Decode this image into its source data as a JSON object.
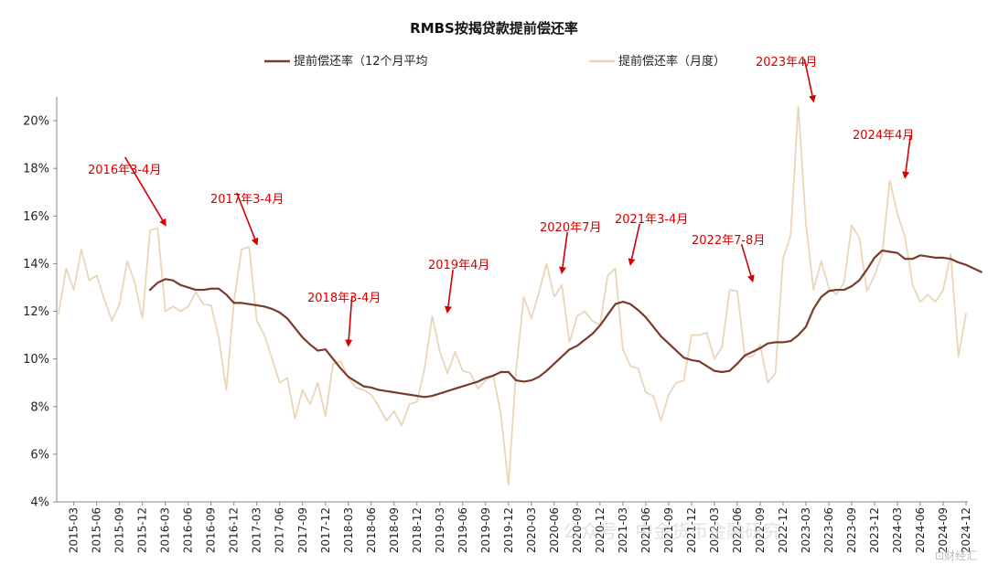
{
  "chart_data": {
    "type": "line",
    "title": "RMBS按揭贷款提前偿还率",
    "xlabel": "",
    "ylabel": "",
    "ylim": [
      4,
      21
    ],
    "y_ticks": [
      "4%",
      "6%",
      "8%",
      "10%",
      "12%",
      "14%",
      "16%",
      "18%",
      "20%"
    ],
    "y_tick_values": [
      4,
      6,
      8,
      10,
      12,
      14,
      16,
      18,
      20
    ],
    "x_tick_labels": [
      "2015-03",
      "2015-06",
      "2015-09",
      "2015-12",
      "2016-03",
      "2016-06",
      "2016-09",
      "2016-12",
      "2017-03",
      "2017-06",
      "2017-09",
      "2017-12",
      "2018-03",
      "2018-06",
      "2018-09",
      "2018-12",
      "2019-03",
      "2019-06",
      "2019-09",
      "2019-12",
      "2020-03",
      "2020-06",
      "2020-09",
      "2020-12",
      "2021-03",
      "2021-06",
      "2021-09",
      "2021-12",
      "2022-03",
      "2022-06",
      "2022-09",
      "2022-12",
      "2023-03",
      "2023-06",
      "2023-09",
      "2023-12",
      "2024-03",
      "2024-06",
      "2024-09",
      "2024-12"
    ],
    "grid": false,
    "legend_position": "top-center",
    "series": [
      {
        "name": "提前偿还率（12个月平均",
        "color": "#7b3b2b",
        "start": "2016-01",
        "values": [
          12.9,
          13.2,
          13.35,
          13.3,
          13.1,
          13.0,
          12.9,
          12.9,
          12.95,
          12.95,
          12.7,
          12.35,
          12.35,
          12.3,
          12.25,
          12.2,
          12.1,
          11.95,
          11.7,
          11.3,
          10.9,
          10.6,
          10.35,
          10.4,
          10.0,
          9.6,
          9.25,
          9.05,
          8.85,
          8.8,
          8.7,
          8.65,
          8.6,
          8.55,
          8.5,
          8.45,
          8.4,
          8.45,
          8.55,
          8.65,
          8.75,
          8.85,
          8.95,
          9.05,
          9.2,
          9.3,
          9.45,
          9.45,
          9.1,
          9.05,
          9.1,
          9.25,
          9.5,
          9.8,
          10.1,
          10.4,
          10.55,
          10.8,
          11.05,
          11.4,
          11.85,
          12.3,
          12.4,
          12.3,
          12.05,
          11.75,
          11.35,
          10.95,
          10.65,
          10.35,
          10.05,
          9.95,
          9.9,
          9.7,
          9.5,
          9.45,
          9.5,
          9.8,
          10.15,
          10.3,
          10.45,
          10.65,
          10.7,
          10.7,
          10.75,
          11.0,
          11.35,
          12.1,
          12.6,
          12.85,
          12.9,
          12.9,
          13.05,
          13.3,
          13.75,
          14.25,
          14.55,
          14.5,
          14.45,
          14.2,
          14.2,
          14.35,
          14.3,
          14.25,
          14.25,
          14.2,
          14.05,
          13.95,
          13.8,
          13.65
        ]
      },
      {
        "name": "提前偿还率（月度）",
        "color": "#e9d6ba",
        "start": "2015-01",
        "values": [
          11.9,
          13.8,
          12.9,
          14.6,
          13.3,
          13.5,
          12.5,
          11.6,
          12.3,
          14.1,
          13.2,
          11.7,
          15.4,
          15.5,
          12.0,
          12.2,
          12.0,
          12.2,
          12.8,
          12.3,
          12.25,
          10.9,
          8.7,
          12.4,
          14.6,
          14.7,
          11.6,
          11.0,
          10.0,
          9.0,
          9.2,
          7.5,
          8.7,
          8.1,
          9.0,
          7.6,
          9.8,
          9.9,
          9.2,
          8.8,
          8.7,
          8.5,
          8.0,
          7.4,
          7.8,
          7.2,
          8.1,
          8.2,
          9.6,
          11.8,
          10.3,
          9.4,
          10.3,
          9.5,
          9.4,
          8.75,
          9.1,
          9.3,
          7.7,
          4.7,
          9.5,
          12.6,
          11.7,
          12.8,
          14.0,
          12.6,
          13.1,
          10.7,
          11.8,
          12.0,
          11.6,
          11.4,
          13.5,
          13.8,
          10.4,
          9.7,
          9.6,
          8.6,
          8.45,
          7.4,
          8.5,
          9.0,
          9.1,
          11.0,
          11.0,
          11.1,
          10.0,
          10.5,
          12.9,
          12.85,
          10.1,
          10.1,
          10.6,
          9.0,
          9.4,
          14.2,
          15.2,
          20.6,
          15.7,
          12.9,
          14.1,
          13.0,
          12.7,
          13.2,
          15.6,
          15.1,
          12.85,
          13.5,
          14.4,
          17.5,
          16.1,
          15.1,
          13.1,
          12.4,
          12.7,
          12.4,
          12.9,
          14.4,
          10.1,
          11.9
        ]
      }
    ],
    "annotations": [
      {
        "text": "2016年3-4月",
        "at": "2016-03",
        "value": 15.4
      },
      {
        "text": "2017年3-4月",
        "at": "2017-03",
        "value": 14.6
      },
      {
        "text": "2018年3-4月",
        "at": "2018-03",
        "value": 10.35
      },
      {
        "text": "2019年4月",
        "at": "2019-04",
        "value": 11.75
      },
      {
        "text": "2020年7月",
        "at": "2020-07",
        "value": 13.4
      },
      {
        "text": "2021年3-4月",
        "at": "2021-04",
        "value": 13.75
      },
      {
        "text": "2022年7-8月",
        "at": "2022-08",
        "value": 13.05
      },
      {
        "text": "2023年4月",
        "at": "2023-04",
        "value": 20.6
      },
      {
        "text": "2024年4月",
        "at": "2024-04",
        "value": 17.4
      }
    ]
  },
  "watermark": {
    "text": "公众号 · 中金货币金融研究",
    "corner": "⊡财经汇"
  }
}
